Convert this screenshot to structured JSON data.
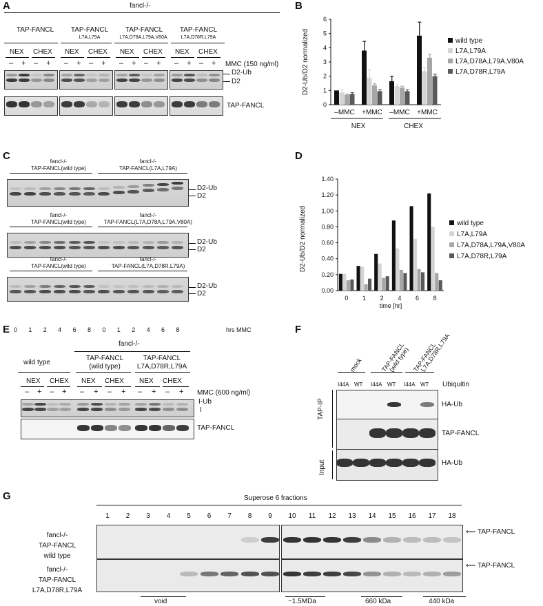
{
  "panelA": {
    "letter": "A",
    "genotype": "fancl-/-",
    "constructs": [
      "TAP-FANCL",
      "TAP-FANCL",
      "TAP-FANCL",
      "TAP-FANCL"
    ],
    "mutations": [
      "",
      "L7A,L79A",
      "L7A,D78A,L79A,V80A",
      "L7A,D78R,L79A"
    ],
    "fractions": [
      "NEX",
      "CHEX"
    ],
    "mmc_signs": [
      "–",
      "+",
      "–",
      "+"
    ],
    "mmc_label": "MMC (150 ng/ml)",
    "band_labels": [
      "D2-Ub",
      "D2"
    ],
    "lower_label": "TAP-FANCL"
  },
  "panelB": {
    "letter": "B",
    "chart_data": {
      "type": "bar",
      "ylabel": "D2-Ub/D2 normalized",
      "ylim": [
        0,
        6
      ],
      "yticks": [
        "0",
        "1",
        "2",
        "3",
        "4",
        "5",
        "6"
      ],
      "categories": [
        "–MMC",
        "+MMC",
        "–MMC",
        "+MMC"
      ],
      "groups": [
        "NEX",
        "CHEX"
      ],
      "colors": [
        "#111111",
        "#d4d4d4",
        "#a6a6a6",
        "#595959"
      ],
      "series": [
        {
          "name": "wild type",
          "values": [
            1.0,
            3.8,
            1.65,
            4.85
          ],
          "errors": [
            0.0,
            0.65,
            0.35,
            0.95
          ]
        },
        {
          "name": "L7A,L79A",
          "values": [
            0.85,
            1.9,
            1.3,
            2.35
          ],
          "errors": [
            0.2,
            0.55,
            0.1,
            0.25
          ]
        },
        {
          "name": "L7A,D78A,L79A,V80A",
          "values": [
            0.7,
            1.35,
            1.2,
            3.3
          ],
          "errors": [
            0.05,
            0.12,
            0.1,
            0.25
          ]
        },
        {
          "name": "L7A,D78R,L79A",
          "values": [
            0.75,
            0.95,
            0.95,
            2.0
          ],
          "errors": [
            0.1,
            0.1,
            0.1,
            0.15
          ]
        }
      ]
    }
  },
  "panelC": {
    "letter": "C",
    "rows": [
      {
        "left": [
          "fancl-/-",
          "TAP-FANCL(wild type)"
        ],
        "right": [
          "fancl-/-",
          "TAP-FANCL(L7A,L79A)"
        ]
      },
      {
        "left": [
          "fancl-/-",
          "TAP-FANCL(wild type)"
        ],
        "right": [
          "fancl-/-",
          "TAP-FANCL(L7A,D78A,L79A,V80A)"
        ]
      },
      {
        "left": [
          "fancl-/-",
          "TAP-FANCL(wild type)"
        ],
        "right": [
          "fancl-/-",
          "TAP-FANCL(L7A,D78R,L79A)"
        ]
      }
    ],
    "band_labels": [
      "D2-Ub",
      "D2"
    ],
    "times": [
      "0",
      "1",
      "2",
      "4",
      "6",
      "8",
      "0",
      "1",
      "2",
      "4",
      "6",
      "8"
    ],
    "time_unit": "hrs MMC"
  },
  "panelD": {
    "letter": "D",
    "chart_data": {
      "type": "bar",
      "ylabel": "D2-Ub/D2 normalized",
      "xlabel": "time [hr]",
      "ylim": [
        0,
        1.4
      ],
      "yticks": [
        "0.00",
        "0.20",
        "0.40",
        "0.60",
        "0.80",
        "1.00",
        "1.20",
        "1.40"
      ],
      "categories": [
        "0",
        "1",
        "2",
        "4",
        "6",
        "8"
      ],
      "colors": [
        "#111111",
        "#d4d4d4",
        "#a6a6a6",
        "#595959"
      ],
      "series": [
        {
          "name": "wild type",
          "values": [
            0.21,
            0.31,
            0.46,
            0.88,
            1.06,
            1.22
          ]
        },
        {
          "name": "L7A,L79A",
          "values": [
            0.21,
            0.3,
            0.34,
            0.53,
            0.65,
            0.8
          ]
        },
        {
          "name": "L7A,D78A,L79A,V80A",
          "values": [
            0.13,
            0.08,
            0.16,
            0.26,
            0.27,
            0.22
          ]
        },
        {
          "name": "L7A,D78R,L79A",
          "values": [
            0.14,
            0.15,
            0.18,
            0.22,
            0.23,
            0.13
          ]
        }
      ]
    }
  },
  "panelE": {
    "letter": "E",
    "genotype": "fancl-/-",
    "groups": [
      "wild type",
      "TAP-FANCL",
      "TAP-FANCL"
    ],
    "group_sub": [
      "",
      "(wild type)",
      "L7A,D78R,L79A"
    ],
    "fractions": [
      "NEX",
      "CHEX"
    ],
    "mmc_signs": [
      "–",
      "+",
      "–",
      "+"
    ],
    "mmc_label": "MMC (600 ng/ml)",
    "band_labels": [
      "I-Ub",
      "I"
    ],
    "lower_label": "TAP-FANCL"
  },
  "panelF": {
    "letter": "F",
    "columns": [
      "mock",
      "TAP-FANCL (wild type)",
      "TAP-FANCL L7A,D78R,L79A"
    ],
    "column_lines": [
      [
        "mock"
      ],
      [
        "TAP-FANCL",
        "(wild type)"
      ],
      [
        "TAP-FANCL",
        "L7A,D78R,L79A"
      ]
    ],
    "ub_variants": [
      "I44A",
      "WT",
      "I44A",
      "WT",
      "I44A",
      "WT"
    ],
    "ub_label": "Ubiquitin",
    "side_labels": [
      "TAP-IP",
      "Input"
    ],
    "band_labels": [
      "HA-Ub",
      "TAP-FANCL",
      "HA-Ub"
    ]
  },
  "panelG": {
    "letter": "G",
    "title": "Superose 6 fractions",
    "fractions": [
      "1",
      "2",
      "3",
      "4",
      "5",
      "6",
      "7",
      "8",
      "9",
      "10",
      "11",
      "12",
      "13",
      "14",
      "15",
      "16",
      "17",
      "18"
    ],
    "rows": [
      [
        "fancl-/-",
        "TAP-FANCL",
        "wild type"
      ],
      [
        "fancl-/-",
        "TAP-FANCL",
        "L7A,D78R,L79A"
      ]
    ],
    "arrow_label": "TAP-FANCL",
    "markers": [
      "void",
      "~1.5MDa",
      "660 kDa",
      "440 kDa"
    ]
  }
}
